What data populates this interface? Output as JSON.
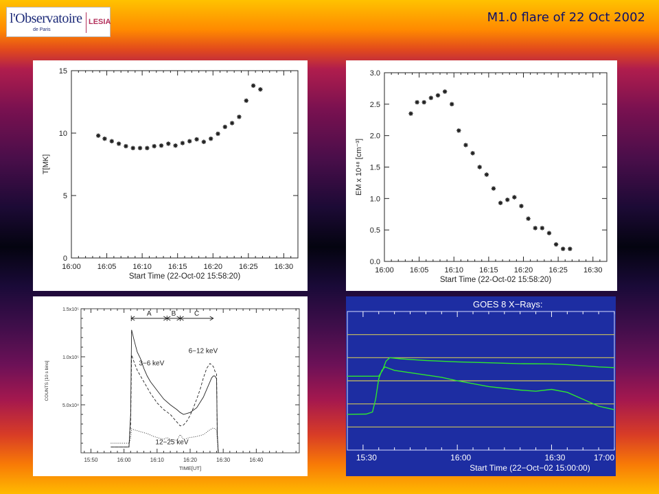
{
  "header": {
    "title": "M1.0 flare of 22 Oct 2002",
    "logo": {
      "observatoire": "l'Observatoire",
      "paris": "de Paris",
      "lesia": "LESIA"
    }
  },
  "chart_data": [
    {
      "type": "scatter",
      "xlabel": "Start Time (22-Oct-02 15:58:20)",
      "ylabel": "T[MK]",
      "xlim": [
        0,
        32
      ],
      "ylim": [
        0,
        15
      ],
      "xticks": [
        {
          "v": 0,
          "label": "16:00"
        },
        {
          "v": 5,
          "label": "16:05"
        },
        {
          "v": 10,
          "label": "16:10"
        },
        {
          "v": 15,
          "label": "16:15"
        },
        {
          "v": 20,
          "label": "16:20"
        },
        {
          "v": 25,
          "label": "16:25"
        },
        {
          "v": 30,
          "label": "16:30"
        }
      ],
      "yticks": [
        {
          "v": 0,
          "label": "0"
        },
        {
          "v": 5,
          "label": "5"
        },
        {
          "v": 10,
          "label": "10"
        },
        {
          "v": 15,
          "label": "15"
        }
      ],
      "x": [
        3.8,
        4.7,
        5.7,
        6.7,
        7.7,
        8.7,
        9.7,
        10.7,
        11.7,
        12.7,
        13.7,
        14.7,
        15.7,
        16.7,
        17.7,
        18.7,
        19.7,
        20.7,
        21.7,
        22.7,
        23.7,
        24.7,
        25.7,
        26.7
      ],
      "y": [
        9.8,
        9.55,
        9.35,
        9.15,
        8.95,
        8.8,
        8.8,
        8.8,
        8.95,
        9.0,
        9.15,
        9.0,
        9.2,
        9.35,
        9.5,
        9.3,
        9.55,
        9.95,
        10.5,
        10.8,
        11.3,
        12.6,
        13.8,
        13.5
      ]
    },
    {
      "type": "scatter",
      "xlabel": "Start Time (22-Oct-02 15:58:20)",
      "ylabel": "EM x 10⁴⁸ [cm⁻³]",
      "xlim": [
        0,
        32
      ],
      "ylim": [
        0,
        3.0
      ],
      "xticks": [
        {
          "v": 0,
          "label": "16:00"
        },
        {
          "v": 5,
          "label": "16:05"
        },
        {
          "v": 10,
          "label": "16:10"
        },
        {
          "v": 15,
          "label": "16:15"
        },
        {
          "v": 20,
          "label": "16:20"
        },
        {
          "v": 25,
          "label": "16:25"
        },
        {
          "v": 30,
          "label": "16:30"
        }
      ],
      "yticks": [
        {
          "v": 0.0,
          "label": "0.0"
        },
        {
          "v": 0.5,
          "label": "0.5"
        },
        {
          "v": 1.0,
          "label": "1.0"
        },
        {
          "v": 1.5,
          "label": "1.5"
        },
        {
          "v": 2.0,
          "label": "2.0"
        },
        {
          "v": 2.5,
          "label": "2.5"
        },
        {
          "v": 3.0,
          "label": "3.0"
        }
      ],
      "x": [
        3.8,
        4.7,
        5.7,
        6.7,
        7.7,
        8.7,
        9.7,
        10.7,
        11.7,
        12.7,
        13.7,
        14.7,
        15.7,
        16.7,
        17.7,
        18.7,
        19.7,
        20.7,
        21.7,
        22.7,
        23.7,
        24.7,
        25.7,
        26.7
      ],
      "y": [
        2.35,
        2.53,
        2.53,
        2.6,
        2.64,
        2.7,
        2.5,
        2.08,
        1.85,
        1.72,
        1.5,
        1.38,
        1.16,
        0.93,
        0.98,
        1.02,
        0.88,
        0.68,
        0.53,
        0.53,
        0.45,
        0.27,
        0.2,
        0.2
      ]
    },
    {
      "type": "line",
      "xlabel": "TIME[UT]",
      "ylabel": "COUNTS [10 s bins]",
      "xlim": [
        -13,
        53
      ],
      "ylim": [
        0,
        150000
      ],
      "xticks": [
        {
          "v": -10,
          "label": "15:50"
        },
        {
          "v": 0,
          "label": "16:00"
        },
        {
          "v": 10,
          "label": "16:10"
        },
        {
          "v": 20,
          "label": "16:20"
        },
        {
          "v": 30,
          "label": "16:30"
        },
        {
          "v": 40,
          "label": "16:40"
        }
      ],
      "yticks": [
        {
          "v": 50000,
          "label": "5.0x10⁴"
        },
        {
          "v": 100000,
          "label": "1.0x10⁵"
        },
        {
          "v": 150000,
          "label": "1.5x10⁵"
        }
      ],
      "intervals": [
        {
          "label": "A",
          "start": 2.2,
          "end": 13.0
        },
        {
          "label": "B",
          "start": 13.0,
          "end": 17.0
        },
        {
          "label": "C",
          "start": 17.0,
          "end": 27.0
        }
      ],
      "annotations": [
        {
          "text": "3−6 keV",
          "x": 4.5,
          "y": 91000
        },
        {
          "text": "6−12 keV",
          "x": 19.5,
          "y": 104000
        },
        {
          "text": "12−25 keV",
          "x": 9.5,
          "y": 9000
        }
      ],
      "series": [
        {
          "style": "solid",
          "x": [
            -4,
            0,
            1.5,
            2.0,
            2.3,
            3,
            4,
            5,
            6,
            7,
            8,
            10,
            12,
            14,
            16,
            17,
            18,
            20,
            22,
            24,
            25,
            26,
            26.5,
            27,
            27.5,
            28,
            28.2,
            28.5
          ],
          "y": [
            6000,
            6000,
            6000,
            40000,
            128000,
            118000,
            105000,
            98000,
            88000,
            80000,
            74000,
            65000,
            56000,
            50000,
            45000,
            42000,
            40000,
            42000,
            47000,
            58000,
            66000,
            74000,
            78000,
            80000,
            80000,
            77000,
            20000,
            0
          ]
        },
        {
          "style": "dashed",
          "x": [
            -4,
            0,
            1.5,
            2.0,
            2.3,
            3,
            4,
            6,
            8,
            10,
            12,
            14,
            16,
            17,
            18,
            19,
            20,
            21,
            22,
            23,
            24,
            25,
            26,
            27,
            27.5,
            28,
            28.2,
            28.5
          ],
          "y": [
            6000,
            6000,
            6000,
            30000,
            102000,
            95000,
            86000,
            74000,
            62000,
            52000,
            45000,
            40000,
            32000,
            28000,
            29000,
            33000,
            39000,
            47000,
            56000,
            66000,
            78000,
            88000,
            93000,
            90000,
            85000,
            82000,
            20000,
            0
          ]
        },
        {
          "style": "dotted",
          "x": [
            -4,
            0,
            1.5,
            2.0,
            2.3,
            3,
            5,
            7,
            9,
            11,
            12,
            13,
            14,
            16,
            17,
            18,
            20,
            22,
            24,
            26,
            27,
            28,
            28.5
          ],
          "y": [
            10000,
            10000,
            10000,
            15000,
            25000,
            24000,
            22000,
            20000,
            17000,
            15000,
            14000,
            16000,
            14000,
            13000,
            19000,
            14000,
            16000,
            17000,
            19000,
            24000,
            26000,
            24000,
            0
          ]
        }
      ]
    },
    {
      "type": "line",
      "title": "GOES 8 X−Rays:",
      "xlabel": "Start Time (22−Oct−02 15:00:00)",
      "xlim": [
        25,
        110
      ],
      "xticks": [
        {
          "v": 30,
          "label": "15:30"
        },
        {
          "v": 60,
          "label": "16:00"
        },
        {
          "v": 90,
          "label": "16:30"
        },
        {
          "v": 120,
          "label": "17:00"
        }
      ],
      "series": [
        {
          "x": [
            25,
            33,
            35,
            36.2,
            37.3,
            38.5,
            42,
            50,
            60,
            70,
            80,
            90,
            95,
            100,
            105,
            110
          ],
          "y": [
            3.2,
            3.2,
            3.2,
            3.45,
            3.85,
            4.0,
            3.95,
            3.88,
            3.82,
            3.78,
            3.74,
            3.73,
            3.7,
            3.65,
            3.6,
            3.57
          ]
        },
        {
          "x": [
            25,
            31,
            33,
            34,
            35,
            36,
            37,
            38,
            40,
            45,
            50,
            55,
            60,
            70,
            80,
            85,
            90,
            95,
            100,
            105,
            110
          ],
          "y": [
            1.55,
            1.56,
            1.65,
            2.2,
            3.1,
            3.45,
            3.6,
            3.55,
            3.45,
            3.35,
            3.25,
            3.15,
            3.0,
            2.75,
            2.6,
            2.55,
            2.63,
            2.5,
            2.2,
            1.9,
            1.75
          ]
        }
      ]
    }
  ]
}
